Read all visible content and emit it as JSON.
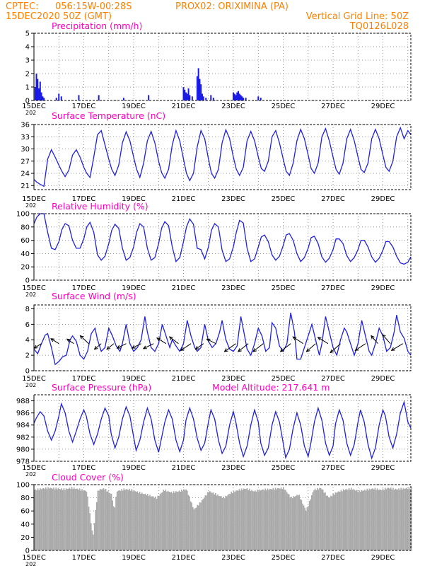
{
  "header": {
    "source": "CPTEC:",
    "coords": "056:15W-00:28S",
    "station": "PROX02: ORIXIMINA (PA)",
    "date": "15DEC2020 50Z (GMT)",
    "grid_note": "Vertical Grid Line: 50Z",
    "model": "TQ0126L028"
  },
  "x_axis": {
    "labels": [
      "15DEC",
      "17DEC",
      "19DEC",
      "21DEC",
      "23DEC",
      "25DEC",
      "27DEC",
      "29DEC"
    ],
    "year_fragment": "202"
  },
  "colors": {
    "header": "#ff8000",
    "title": "#ff00c0",
    "series": "#2020e0",
    "cloud": "#a9a9a9"
  },
  "chart_data": [
    {
      "id": "precip",
      "type": "bar",
      "title": "Precipitation (mm/h)",
      "ylim": [
        0,
        5
      ],
      "yticks": [
        "0",
        "1",
        "2",
        "3",
        "4",
        "5"
      ],
      "ytick_values": [
        0,
        1,
        2,
        3,
        4,
        5
      ],
      "x_days": [
        0.05,
        0.1,
        0.15,
        0.2,
        0.25,
        0.3,
        0.35,
        0.4,
        0.9,
        1.0,
        1.1,
        1.8,
        2.6,
        3.6,
        4.6,
        6.0,
        6.05,
        6.1,
        6.15,
        6.2,
        6.25,
        6.35,
        6.55,
        6.6,
        6.65,
        6.7,
        6.75,
        6.8,
        6.9,
        7.1,
        7.2,
        8.0,
        8.05,
        8.1,
        8.15,
        8.2,
        8.25,
        8.3,
        8.35,
        8.4,
        8.5,
        9.0,
        9.1
      ],
      "values": [
        1.0,
        2.0,
        1.6,
        0.9,
        1.4,
        0.6,
        0.3,
        0.2,
        0.2,
        0.5,
        0.3,
        0.4,
        0.4,
        0.2,
        0.4,
        1.0,
        0.8,
        0.6,
        0.5,
        0.9,
        0.4,
        0.3,
        1.8,
        2.4,
        1.6,
        1.2,
        0.5,
        0.3,
        0.2,
        0.4,
        0.2,
        0.6,
        0.5,
        0.4,
        0.6,
        0.7,
        0.5,
        0.4,
        0.3,
        0.2,
        0.2,
        0.3,
        0.2
      ]
    },
    {
      "id": "temp",
      "type": "line",
      "title": "Surface Temperature (nC)",
      "ylim": [
        20,
        36
      ],
      "yticks": [
        "21",
        "24",
        "27",
        "30",
        "33",
        "36"
      ],
      "ytick_values": [
        21,
        24,
        27,
        30,
        33,
        36
      ],
      "x": [
        0,
        0.12,
        0.25,
        0.4,
        0.55,
        0.7,
        0.85,
        1.0,
        1.12,
        1.25,
        1.4,
        1.55,
        1.7,
        1.85,
        2.0,
        2.12,
        2.25,
        2.4,
        2.55,
        2.7,
        2.85,
        3.0,
        3.12,
        3.25,
        3.4,
        3.55,
        3.7,
        3.85,
        4.0,
        4.12,
        4.25,
        4.4,
        4.55,
        4.7,
        4.85,
        5.0,
        5.12,
        5.25,
        5.4,
        5.55,
        5.7,
        5.85,
        6.0,
        6.12,
        6.25,
        6.4,
        6.55,
        6.7,
        6.85,
        7.0,
        7.12,
        7.25,
        7.4,
        7.55,
        7.7,
        7.85,
        8.0,
        8.12,
        8.25,
        8.4,
        8.55,
        8.7,
        8.85,
        9.0,
        9.12,
        9.25,
        9.4,
        9.55,
        9.7,
        9.85,
        10.0,
        10.12,
        10.25,
        10.4,
        10.55,
        10.7,
        10.85,
        11.0,
        11.12,
        11.25,
        11.4,
        11.55,
        11.7,
        11.85,
        12.0,
        12.12,
        12.25,
        12.4,
        12.55,
        12.7,
        12.85,
        13.0,
        13.12,
        13.25,
        13.4,
        13.55,
        13.7,
        13.85,
        14.0,
        14.12,
        14.25,
        14.4,
        14.55,
        14.7,
        14.85,
        15.0,
        15.12
      ],
      "y": [
        22.5,
        21.8,
        21.3,
        20.8,
        27.5,
        29.8,
        28.0,
        26.0,
        24.5,
        23.2,
        24.8,
        28.5,
        29.8,
        28.0,
        25.5,
        24.0,
        23.0,
        28.0,
        33.5,
        34.5,
        31.0,
        27.5,
        25.0,
        23.5,
        26.0,
        31.5,
        34.2,
        32.0,
        28.0,
        25.0,
        23.0,
        26.5,
        32.0,
        34.3,
        31.5,
        27.0,
        24.2,
        22.8,
        25.0,
        31.0,
        34.5,
        32.0,
        27.5,
        24.0,
        22.2,
        24.0,
        30.5,
        34.5,
        32.5,
        27.5,
        24.0,
        22.8,
        25.0,
        31.5,
        34.7,
        32.5,
        28.0,
        25.0,
        23.5,
        25.5,
        32.0,
        34.3,
        32.0,
        28.0,
        25.2,
        24.5,
        27.0,
        33.0,
        34.5,
        31.5,
        27.5,
        24.5,
        23.5,
        26.5,
        32.0,
        34.8,
        32.5,
        28.5,
        25.2,
        24.0,
        26.5,
        33.0,
        35.0,
        32.0,
        28.0,
        25.0,
        23.8,
        26.5,
        32.5,
        34.8,
        32.0,
        28.0,
        25.0,
        24.2,
        26.5,
        32.5,
        34.8,
        32.5,
        28.5,
        25.5,
        24.5,
        27.0,
        33.0,
        35.2,
        32.5,
        34.5,
        33.5
      ]
    },
    {
      "id": "rh",
      "type": "line",
      "title": "Relative Humidity (%)",
      "ylim": [
        0,
        100
      ],
      "yticks": [
        "0",
        "20",
        "40",
        "60",
        "80",
        "100"
      ],
      "ytick_values": [
        0,
        20,
        40,
        60,
        80,
        100
      ],
      "x": [
        0,
        0.12,
        0.25,
        0.4,
        0.55,
        0.7,
        0.85,
        1.0,
        1.12,
        1.25,
        1.4,
        1.55,
        1.7,
        1.85,
        2.0,
        2.12,
        2.25,
        2.4,
        2.55,
        2.7,
        2.85,
        3.0,
        3.12,
        3.25,
        3.4,
        3.55,
        3.7,
        3.85,
        4.0,
        4.12,
        4.25,
        4.4,
        4.55,
        4.7,
        4.85,
        5.0,
        5.12,
        5.25,
        5.4,
        5.55,
        5.7,
        5.85,
        6.0,
        6.12,
        6.25,
        6.4,
        6.55,
        6.7,
        6.85,
        7.0,
        7.12,
        7.25,
        7.4,
        7.55,
        7.7,
        7.85,
        8.0,
        8.12,
        8.25,
        8.4,
        8.55,
        8.7,
        8.85,
        9.0,
        9.12,
        9.25,
        9.4,
        9.55,
        9.7,
        9.85,
        10.0,
        10.12,
        10.25,
        10.4,
        10.55,
        10.7,
        10.85,
        11.0,
        11.12,
        11.25,
        11.4,
        11.55,
        11.7,
        11.85,
        12.0,
        12.12,
        12.25,
        12.4,
        12.55,
        12.7,
        12.85,
        13.0,
        13.12,
        13.25,
        13.4,
        13.55,
        13.7,
        13.85,
        14.0,
        14.12,
        14.25,
        14.4,
        14.55,
        14.7,
        14.85,
        15.0,
        15.12
      ],
      "y": [
        85,
        95,
        100,
        100,
        72,
        48,
        46,
        58,
        76,
        85,
        82,
        60,
        48,
        48,
        62,
        80,
        87,
        72,
        38,
        30,
        36,
        55,
        75,
        84,
        78,
        48,
        30,
        34,
        50,
        72,
        85,
        80,
        48,
        30,
        34,
        55,
        78,
        88,
        82,
        50,
        28,
        34,
        58,
        80,
        92,
        84,
        48,
        46,
        32,
        50,
        75,
        85,
        80,
        45,
        28,
        32,
        50,
        72,
        90,
        86,
        48,
        28,
        32,
        50,
        65,
        68,
        58,
        38,
        30,
        36,
        52,
        68,
        70,
        60,
        40,
        28,
        34,
        48,
        64,
        66,
        55,
        35,
        27,
        33,
        46,
        62,
        62,
        55,
        37,
        28,
        34,
        46,
        60,
        60,
        50,
        35,
        27,
        33,
        45,
        58,
        58,
        50,
        36,
        26,
        24,
        27,
        35
      ]
    },
    {
      "id": "wind",
      "type": "line",
      "title": "Surface Wind (m/s)",
      "ylim": [
        0,
        8.5
      ],
      "yticks": [
        "0",
        "2",
        "4",
        "6",
        "8"
      ],
      "ytick_values": [
        0,
        2,
        4,
        6,
        8
      ],
      "x": [
        0,
        0.15,
        0.3,
        0.45,
        0.55,
        0.7,
        0.85,
        1.0,
        1.15,
        1.3,
        1.45,
        1.55,
        1.7,
        1.85,
        2.0,
        2.15,
        2.3,
        2.45,
        2.55,
        2.7,
        2.85,
        3.0,
        3.15,
        3.3,
        3.45,
        3.55,
        3.7,
        3.85,
        4.0,
        4.15,
        4.3,
        4.45,
        4.55,
        4.7,
        4.85,
        5.0,
        5.15,
        5.3,
        5.45,
        5.55,
        5.7,
        5.85,
        6.0,
        6.15,
        6.3,
        6.45,
        6.55,
        6.7,
        6.85,
        7.0,
        7.15,
        7.3,
        7.45,
        7.55,
        7.7,
        7.85,
        8.0,
        8.15,
        8.3,
        8.45,
        8.55,
        8.7,
        8.85,
        9.0,
        9.15,
        9.3,
        9.45,
        9.55,
        9.7,
        9.85,
        10.0,
        10.15,
        10.3,
        10.45,
        10.55,
        10.7,
        10.85,
        11.0,
        11.15,
        11.3,
        11.45,
        11.55,
        11.7,
        11.85,
        12.0,
        12.15,
        12.3,
        12.45,
        12.55,
        12.7,
        12.85,
        13.0,
        13.15,
        13.3,
        13.45,
        13.55,
        13.7,
        13.85,
        14.0,
        14.15,
        14.3,
        14.45,
        14.55,
        14.7,
        14.85,
        15.0,
        15.12
      ],
      "y": [
        2.8,
        2.2,
        3.5,
        4.6,
        4.8,
        3.0,
        0.8,
        1.2,
        1.8,
        2.0,
        4.0,
        4.5,
        3.8,
        2.0,
        1.5,
        2.5,
        4.8,
        5.5,
        4.0,
        2.5,
        3.0,
        5.5,
        4.5,
        3.2,
        2.5,
        3.5,
        6.0,
        3.5,
        2.5,
        3.0,
        4.0,
        7.0,
        5.0,
        3.0,
        2.5,
        3.5,
        6.0,
        4.5,
        3.0,
        4.0,
        3.2,
        2.5,
        3.5,
        6.5,
        4.5,
        3.0,
        2.5,
        3.0,
        6.0,
        3.8,
        3.0,
        3.5,
        5.0,
        6.5,
        4.0,
        2.8,
        2.5,
        3.2,
        7.0,
        4.5,
        2.8,
        2.0,
        3.5,
        5.5,
        4.5,
        2.5,
        3.0,
        6.2,
        5.5,
        3.2,
        2.5,
        3.5,
        7.5,
        5.0,
        1.5,
        1.5,
        3.0,
        4.5,
        6.0,
        4.0,
        2.0,
        3.5,
        7.0,
        5.0,
        3.0,
        2.0,
        4.0,
        5.5,
        5.0,
        3.5,
        2.0,
        3.5,
        6.5,
        4.5,
        2.5,
        2.0,
        3.5,
        5.5,
        4.5,
        2.5,
        3.0,
        5.0,
        7.2,
        5.0,
        4.2,
        2.5,
        2.0
      ],
      "arrows": [
        {
          "day": 0.3,
          "u": -3.2,
          "v": -2.0
        },
        {
          "day": 1.0,
          "u": -3.5,
          "v": 2.2
        },
        {
          "day": 1.6,
          "u": -3.0,
          "v": 2.0
        },
        {
          "day": 2.2,
          "u": -3.8,
          "v": 3.5
        },
        {
          "day": 2.7,
          "u": -3.0,
          "v": -2.5
        },
        {
          "day": 3.2,
          "u": -3.0,
          "v": -2.5
        },
        {
          "day": 3.7,
          "u": -4.0,
          "v": -2.0
        },
        {
          "day": 4.3,
          "u": -4.0,
          "v": -2.0
        },
        {
          "day": 4.8,
          "u": -4.5,
          "v": -2.2
        },
        {
          "day": 5.3,
          "u": -4.0,
          "v": 2.5
        },
        {
          "day": 5.8,
          "u": -4.0,
          "v": 3.0
        },
        {
          "day": 6.3,
          "u": -4.5,
          "v": -3.0
        },
        {
          "day": 6.8,
          "u": -3.5,
          "v": -2.5
        },
        {
          "day": 7.3,
          "u": -4.0,
          "v": 2.0
        },
        {
          "day": 8.1,
          "u": -5.0,
          "v": -3.5
        },
        {
          "day": 8.6,
          "u": -4.5,
          "v": -3.5
        },
        {
          "day": 9.2,
          "u": -4.5,
          "v": -3.5
        },
        {
          "day": 10.3,
          "u": -4.5,
          "v": -3.5
        },
        {
          "day": 10.8,
          "u": -4.5,
          "v": 3.0
        },
        {
          "day": 11.3,
          "u": -4.0,
          "v": -3.5
        },
        {
          "day": 11.8,
          "u": -4.5,
          "v": 2.8
        },
        {
          "day": 12.3,
          "u": -4.5,
          "v": -4.0
        },
        {
          "day": 13.3,
          "u": -4.5,
          "v": -3.0
        },
        {
          "day": 13.8,
          "u": -3.0,
          "v": 3.5
        },
        {
          "day": 14.3,
          "u": -3.5,
          "v": 4.0
        },
        {
          "day": 14.8,
          "u": -5.0,
          "v": -3.0
        }
      ]
    },
    {
      "id": "pres",
      "type": "line",
      "title": "Surface Pressure (hPa)",
      "annotation": "Model Altitude: 217.641  m",
      "ylim": [
        978,
        989
      ],
      "yticks": [
        "978",
        "980",
        "982",
        "984",
        "986",
        "988"
      ],
      "ytick_values": [
        978,
        980,
        982,
        984,
        986,
        988
      ],
      "x": [
        0,
        0.1,
        0.25,
        0.4,
        0.55,
        0.7,
        0.85,
        1.0,
        1.1,
        1.25,
        1.4,
        1.55,
        1.7,
        1.85,
        2.0,
        2.1,
        2.25,
        2.4,
        2.55,
        2.7,
        2.85,
        3.0,
        3.1,
        3.25,
        3.4,
        3.55,
        3.7,
        3.85,
        4.0,
        4.1,
        4.25,
        4.4,
        4.55,
        4.7,
        4.85,
        5.0,
        5.1,
        5.25,
        5.4,
        5.55,
        5.7,
        5.85,
        6.0,
        6.1,
        6.25,
        6.4,
        6.55,
        6.7,
        6.85,
        7.0,
        7.1,
        7.25,
        7.4,
        7.55,
        7.7,
        7.85,
        8.0,
        8.1,
        8.25,
        8.4,
        8.55,
        8.7,
        8.85,
        9.0,
        9.1,
        9.25,
        9.4,
        9.55,
        9.7,
        9.85,
        10.0,
        10.1,
        10.25,
        10.4,
        10.55,
        10.7,
        10.85,
        11.0,
        11.1,
        11.25,
        11.4,
        11.55,
        11.7,
        11.85,
        12.0,
        12.1,
        12.25,
        12.4,
        12.55,
        12.7,
        12.85,
        13.0,
        13.1,
        13.25,
        13.4,
        13.55,
        13.7,
        13.85,
        14.0,
        14.1,
        14.25,
        14.4,
        14.55,
        14.7,
        14.85,
        15.0,
        15.12
      ],
      "y": [
        984.3,
        985.2,
        986.2,
        985.5,
        983.0,
        981.5,
        983.0,
        985.5,
        987.5,
        986.0,
        983.0,
        981.2,
        983.0,
        985.0,
        986.5,
        985.5,
        982.5,
        980.8,
        982.5,
        985.0,
        986.8,
        985.5,
        982.5,
        980.2,
        982.0,
        985.0,
        987.0,
        985.5,
        982.0,
        979.8,
        981.5,
        984.5,
        986.8,
        985.0,
        981.5,
        979.5,
        981.5,
        984.5,
        986.5,
        985.0,
        981.5,
        979.6,
        981.5,
        984.8,
        986.8,
        985.0,
        981.8,
        979.8,
        981.0,
        984.5,
        986.5,
        985.0,
        981.5,
        979.3,
        980.5,
        984.0,
        986.2,
        984.5,
        981.0,
        978.8,
        980.5,
        984.0,
        986.5,
        984.5,
        981.0,
        979.0,
        980.2,
        984.0,
        986.2,
        984.5,
        981.0,
        978.6,
        980.0,
        983.5,
        986.0,
        984.0,
        980.5,
        978.8,
        980.8,
        984.5,
        986.8,
        984.8,
        981.0,
        979.0,
        980.5,
        984.2,
        986.5,
        984.8,
        981.0,
        979.0,
        980.8,
        984.5,
        986.5,
        984.5,
        980.8,
        978.5,
        980.2,
        984.0,
        986.5,
        985.5,
        982.0,
        980.2,
        982.5,
        986.0,
        987.8,
        984.5,
        983.5
      ]
    },
    {
      "id": "cloud",
      "type": "area",
      "title": "Cloud Cover (%)",
      "ylim": [
        0,
        100
      ],
      "yticks": [
        "0",
        "20",
        "40",
        "60",
        "80",
        "100"
      ],
      "ytick_values": [
        0,
        20,
        40,
        60,
        80,
        100
      ],
      "x": [
        0,
        0.3,
        0.6,
        0.9,
        1.2,
        1.5,
        1.8,
        2.1,
        2.35,
        2.45,
        2.55,
        2.8,
        3.1,
        3.2,
        3.3,
        3.6,
        3.9,
        4.2,
        4.5,
        4.9,
        5.2,
        5.5,
        5.8,
        6.1,
        6.4,
        6.7,
        7.0,
        7.3,
        7.6,
        7.9,
        8.2,
        8.5,
        8.8,
        9.1,
        9.4,
        9.7,
        10.0,
        10.3,
        10.6,
        10.9,
        11.2,
        11.5,
        11.8,
        12.1,
        12.4,
        12.7,
        13.0,
        13.3,
        13.6,
        13.9,
        14.2,
        14.5,
        14.8,
        15.12
      ],
      "y": [
        92,
        94,
        95,
        94,
        93,
        95,
        93,
        90,
        20,
        60,
        92,
        94,
        85,
        60,
        90,
        93,
        92,
        88,
        85,
        80,
        92,
        88,
        90,
        93,
        62,
        75,
        90,
        85,
        80,
        88,
        92,
        94,
        90,
        92,
        93,
        94,
        95,
        80,
        85,
        60,
        92,
        95,
        80,
        88,
        92,
        94,
        90,
        92,
        94,
        92,
        95,
        93,
        94,
        95
      ]
    }
  ]
}
